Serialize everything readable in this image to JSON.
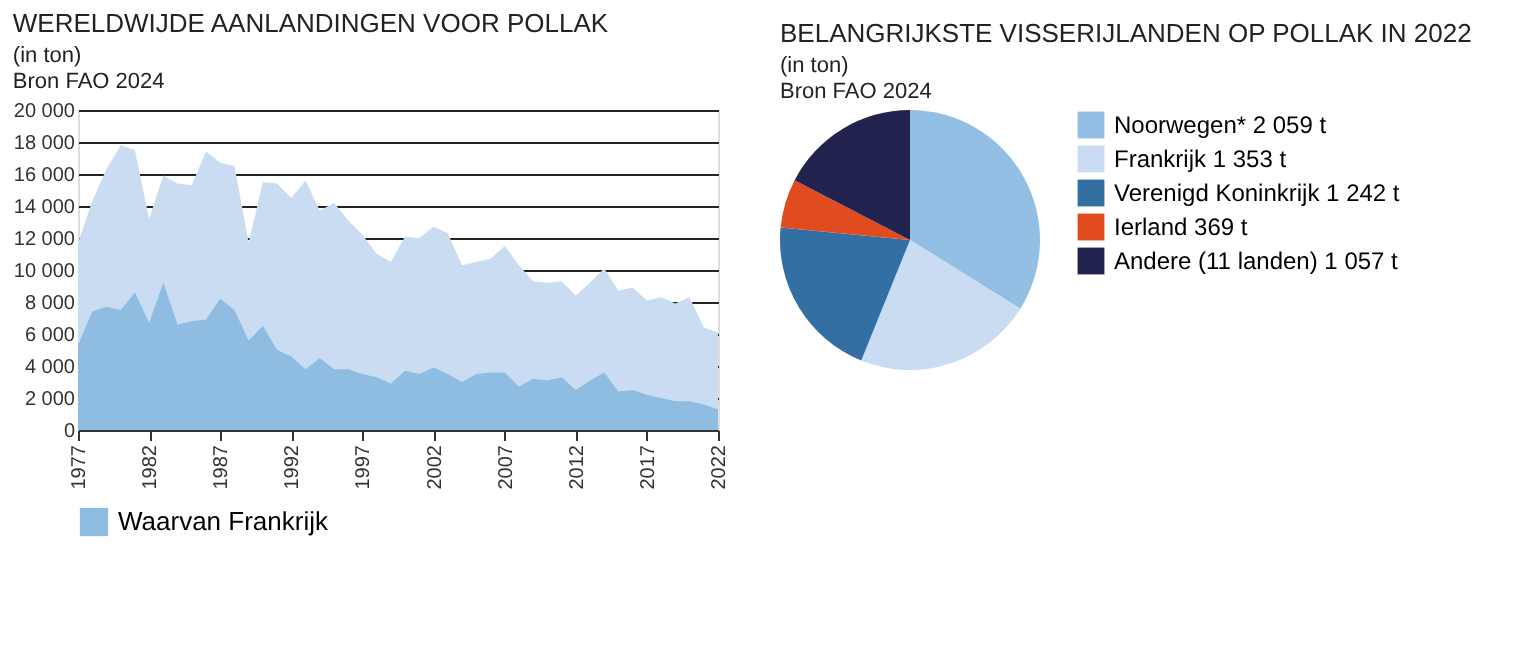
{
  "chart_data": [
    {
      "type": "area",
      "title": "WERELDWIJDE AANLANDINGEN VOOR POLLAK",
      "subtitle": "(in ton)",
      "annotations": [
        "Bron FAO 2024"
      ],
      "x": [
        1977,
        1978,
        1979,
        1980,
        1981,
        1982,
        1983,
        1984,
        1985,
        1986,
        1987,
        1988,
        1989,
        1990,
        1991,
        1992,
        1993,
        1994,
        1995,
        1996,
        1997,
        1998,
        1999,
        2000,
        2001,
        2002,
        2003,
        2004,
        2005,
        2006,
        2007,
        2008,
        2009,
        2010,
        2011,
        2012,
        2013,
        2014,
        2015,
        2016,
        2017,
        2018,
        2019,
        2020,
        2021,
        2022
      ],
      "series": [
        {
          "color": "#c9dcf1",
          "values": [
            11700,
            14300,
            16300,
            17800,
            17500,
            13200,
            15900,
            15400,
            15300,
            17400,
            16700,
            16500,
            11700,
            15500,
            15400,
            14500,
            15600,
            13700,
            14200,
            13100,
            12200,
            11000,
            10500,
            12100,
            12000,
            12700,
            12300,
            10300,
            10500,
            10700,
            11500,
            10300,
            9300,
            9200,
            9300,
            8400,
            9200,
            10100,
            8700,
            8900,
            8100,
            8300,
            7900,
            8300,
            6400,
            6100
          ]
        },
        {
          "name": "Waarvan Frankrijk",
          "color": "#8fbde2",
          "values": [
            5300,
            7400,
            7700,
            7500,
            8600,
            6700,
            9200,
            6600,
            6800,
            6900,
            8200,
            7500,
            5600,
            6500,
            5000,
            4600,
            3800,
            4500,
            3800,
            3800,
            3500,
            3300,
            2900,
            3700,
            3500,
            3900,
            3500,
            3000,
            3500,
            3600,
            3600,
            2700,
            3200,
            3100,
            3300,
            2500,
            3100,
            3600,
            2400,
            2500,
            2200,
            2000,
            1800,
            1800,
            1600,
            1300
          ]
        }
      ],
      "xlim": [
        1977,
        2022
      ],
      "xticks": [
        1977,
        1982,
        1987,
        1992,
        1997,
        2002,
        2007,
        2012,
        2017,
        2022
      ],
      "ylim": [
        0,
        20000
      ],
      "yticks": [
        0,
        {
          "value": 2000,
          "label": "2 000"
        },
        {
          "value": 4000,
          "label": "4 000"
        },
        {
          "value": 6000,
          "label": "6 000"
        },
        {
          "value": 8000,
          "label": "8 000"
        },
        {
          "value": 10000,
          "label": "10 000"
        },
        {
          "value": 12000,
          "label": "12 000"
        },
        {
          "value": 14000,
          "label": "14 000"
        },
        {
          "value": 16000,
          "label": "16 000"
        },
        {
          "value": 18000,
          "label": "18 000"
        },
        {
          "value": 20000,
          "label": "20 000"
        }
      ],
      "grid": "y",
      "legend": "bottom left"
    },
    {
      "type": "pie",
      "title": "BELANGRIJKSTE VISSERIJLANDEN OP POLLAK IN 2022",
      "subtitle": "(in ton)",
      "annotations": [
        "Bron FAO 2024"
      ],
      "categories": [
        "Noorwegen*",
        "Frankrijk",
        "Verenigd Koninkrijk",
        "Ierland",
        "Andere (11 landen)"
      ],
      "values": [
        2059,
        1353,
        1242,
        369,
        1057
      ],
      "value_labels": [
        "2 059 t",
        "1 353 t",
        "1 242 t",
        "369 t",
        "1 057 t"
      ],
      "colors": [
        "#92bfe3",
        "#c9dcf1",
        "#336fa3",
        "#e04b1f",
        "#22224f"
      ],
      "legend": "right"
    }
  ]
}
